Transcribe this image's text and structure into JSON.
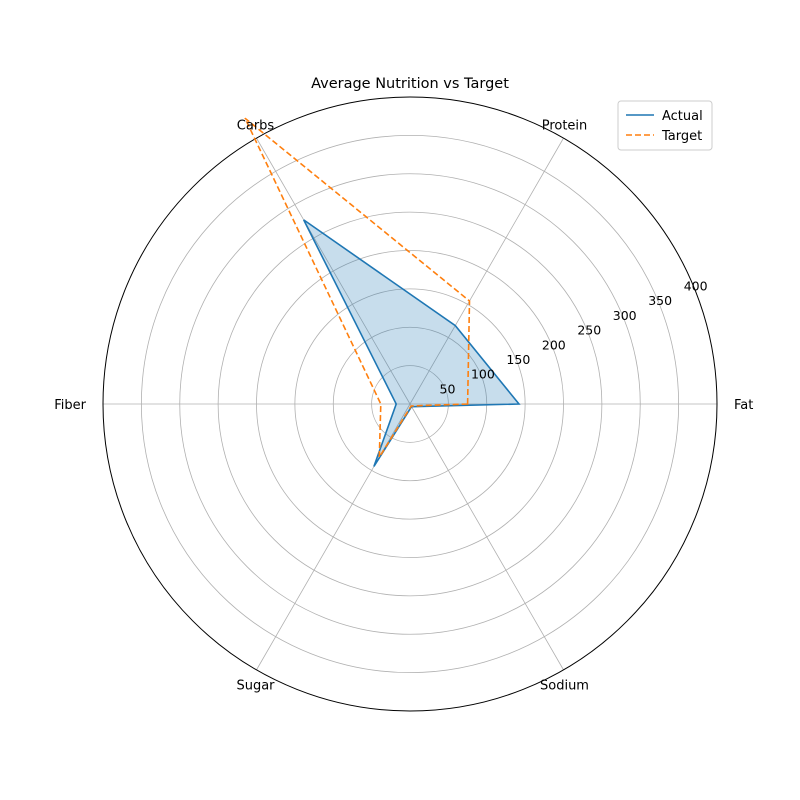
{
  "chart_data": {
    "type": "radar",
    "title": "Average Nutrition vs Target",
    "categories": [
      "Fat",
      "Protein",
      "Carbs",
      "Fiber",
      "Sugar",
      "Sodium"
    ],
    "radial_ticks": [
      "50",
      "100",
      "150",
      "200",
      "250",
      "300",
      "350",
      "400"
    ],
    "rlim": [
      0,
      400
    ],
    "series": [
      {
        "name": "Actual",
        "values": [
          142,
          118,
          277,
          18,
          94,
          4
        ],
        "color": "#1f77b4",
        "linestyle": "solid",
        "filled": true
      },
      {
        "name": "Target",
        "values": [
          75,
          155,
          430,
          38,
          80,
          3
        ],
        "color": "#ff7f0e",
        "linestyle": "dashed",
        "filled": false
      }
    ],
    "grid": true,
    "legend_position": "top-right"
  }
}
